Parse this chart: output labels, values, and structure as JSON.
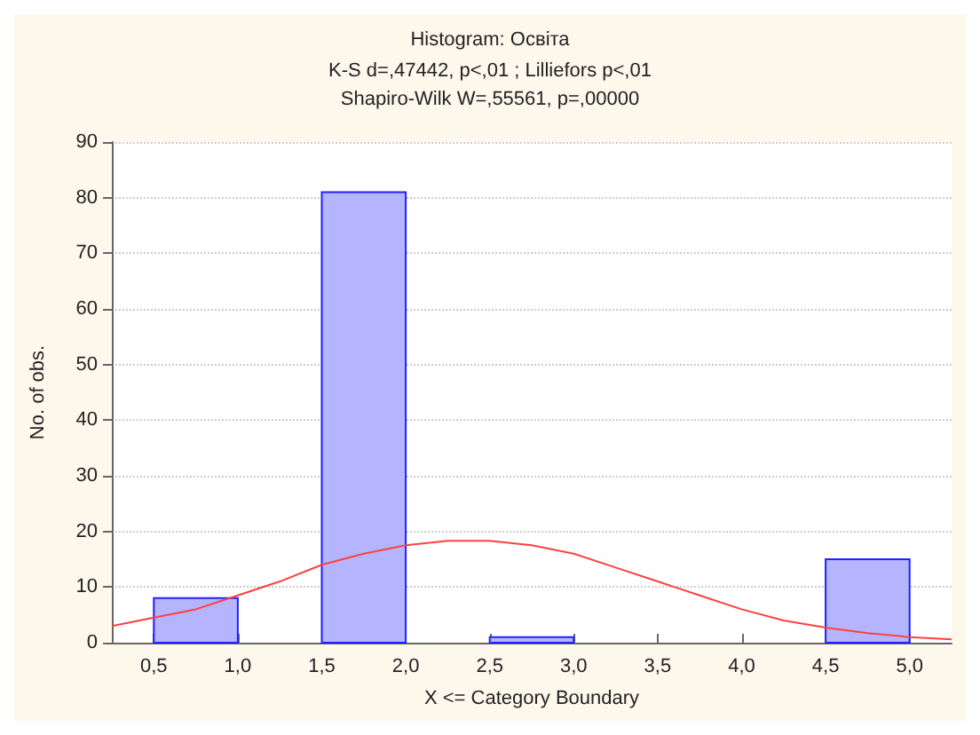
{
  "chart_data": {
    "type": "histogram",
    "title": "Histogram: Освіта",
    "subtitle": "K-S d=,47442, p<,01 ; Lilliefors p<,01",
    "annotations": [
      "Shapiro-Wilk W=,55561, p=,00000"
    ],
    "xlabel": "X <= Category Boundary",
    "ylabel": "No. of obs.",
    "bins": [
      0.5,
      1.0,
      1.5,
      2.0,
      2.5,
      3.0,
      3.5,
      4.0,
      4.5,
      5.0
    ],
    "values": [
      8,
      0,
      81,
      0,
      1,
      0,
      0,
      0,
      15
    ],
    "color": "#b4b4ff",
    "series": [
      {
        "type": "line",
        "color": "#ff4040",
        "marker": "none",
        "x": [
          0.25,
          0.5,
          0.75,
          1.0,
          1.25,
          1.5,
          1.75,
          2.0,
          2.25,
          2.5,
          2.75,
          3.0,
          3.25,
          3.5,
          3.75,
          4.0,
          4.25,
          4.5,
          4.75,
          5.0,
          5.25
        ],
        "values": [
          3,
          4.5,
          6,
          8.5,
          11,
          14,
          16,
          17.5,
          18.3,
          18.3,
          17.5,
          16,
          13.5,
          11,
          8.5,
          6,
          4,
          2.7,
          1.7,
          1,
          0.6
        ]
      }
    ],
    "xlim": [
      0.25,
      5.25
    ],
    "xticks": [
      {
        "value": 0.5,
        "label": "0,5"
      },
      {
        "value": 1.0,
        "label": "1,0"
      },
      {
        "value": 1.5,
        "label": "1,5"
      },
      {
        "value": 2.0,
        "label": "2,0"
      },
      {
        "value": 2.5,
        "label": "2,5"
      },
      {
        "value": 3.0,
        "label": "3,0"
      },
      {
        "value": 3.5,
        "label": "3,5"
      },
      {
        "value": 4.0,
        "label": "4,0"
      },
      {
        "value": 4.5,
        "label": "4,5"
      },
      {
        "value": 5.0,
        "label": "5,0"
      }
    ],
    "ylim": [
      0,
      90
    ],
    "yticks": [
      0,
      10,
      20,
      30,
      40,
      50,
      60,
      70,
      80,
      90
    ],
    "grid": "y"
  }
}
